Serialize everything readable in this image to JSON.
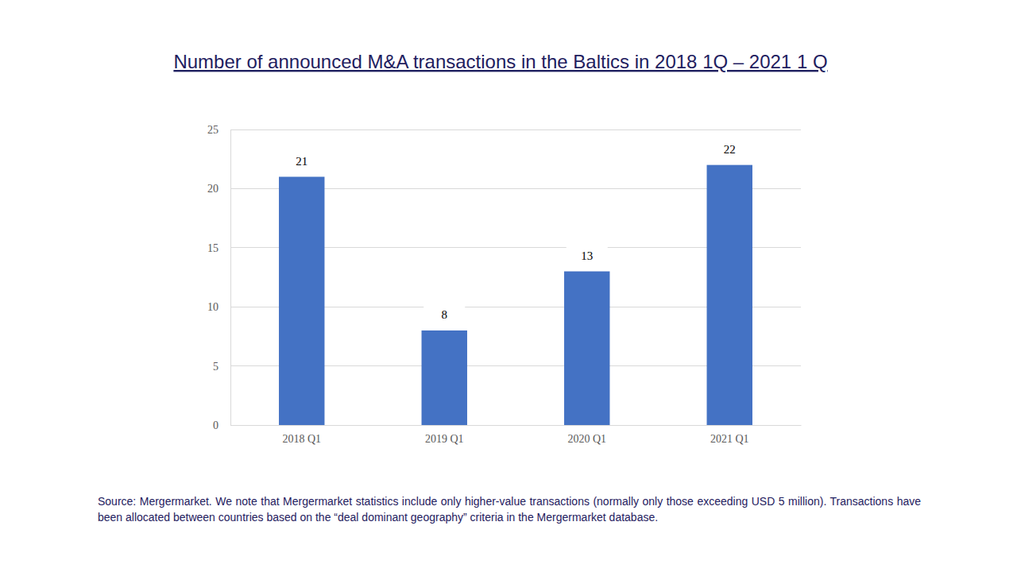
{
  "chart_data": {
    "type": "bar",
    "title": "Number of announced M&A transactions in the Baltics in 2018 1Q – 2021 1 Q",
    "categories": [
      "2018 Q1",
      "2019 Q1",
      "2020 Q1",
      "2021 Q1"
    ],
    "values": [
      21,
      8,
      13,
      22
    ],
    "color": "#4472c4",
    "ylim": [
      0,
      25
    ],
    "yticks": [
      0,
      5,
      10,
      15,
      20,
      25
    ],
    "grid": true,
    "data_labels": true,
    "annotations": [
      "Source: Mergermarket. We note that Mergermarket statistics include only higher-value transactions (normally only those exceeding USD 5 million). Transactions have been allocated between countries based on the “deal dominant geography” criteria in the Mergermarket database."
    ]
  }
}
